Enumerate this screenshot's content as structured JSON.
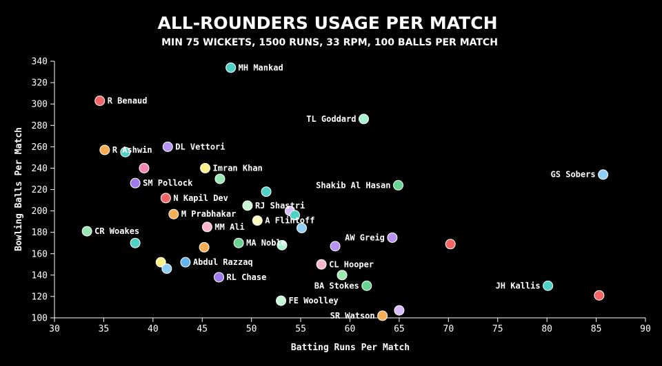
{
  "chart_data": {
    "type": "scatter",
    "title": "ALL-ROUNDERS USAGE PER MATCH",
    "subtitle": "MIN 75 WICKETS, 1500 RUNS, 33 RPM, 100 BALLS PER MATCH",
    "xlabel": "Batting Runs Per Match",
    "ylabel": "Bowling Balls Per Match",
    "xlim": [
      30,
      90
    ],
    "ylim": [
      100,
      340
    ],
    "xticks": [
      "30",
      "35",
      "40",
      "45",
      "50",
      "55",
      "60",
      "65",
      "70",
      "75",
      "80",
      "85",
      "90"
    ],
    "yticks": [
      "100",
      "120",
      "140",
      "160",
      "180",
      "200",
      "220",
      "240",
      "260",
      "280",
      "300",
      "320",
      "340"
    ],
    "grid": false,
    "points": [
      {
        "label": "MH Mankad",
        "x": 47.9,
        "y": 334,
        "color": "#4fd1c5",
        "anchor": "right"
      },
      {
        "label": "R Benaud",
        "x": 34.6,
        "y": 303,
        "color": "#f56565",
        "anchor": "right"
      },
      {
        "label": "TL Goddard",
        "x": 61.4,
        "y": 286,
        "color": "#a7f3d0",
        "anchor": "left"
      },
      {
        "label": "DL Vettori",
        "x": 41.5,
        "y": 260,
        "color": "#b794f4",
        "anchor": "right"
      },
      {
        "label": "R Ashwin",
        "x": 35.1,
        "y": 257,
        "color": "#f6ad55",
        "anchor": "right"
      },
      {
        "label": "",
        "x": 37.2,
        "y": 255,
        "color": "#4fd1c5",
        "anchor": "none"
      },
      {
        "label": "Imran Khan",
        "x": 45.3,
        "y": 240,
        "color": "#faf089",
        "anchor": "right"
      },
      {
        "label": "",
        "x": 39.1,
        "y": 240,
        "color": "#f687b3",
        "anchor": "none"
      },
      {
        "label": "GS Sobers",
        "x": 85.7,
        "y": 234,
        "color": "#90cdf4",
        "anchor": "left"
      },
      {
        "label": "",
        "x": 46.8,
        "y": 230,
        "color": "#9ae6b4",
        "anchor": "none"
      },
      {
        "label": "SM Pollock",
        "x": 38.2,
        "y": 226,
        "color": "#9f7aea",
        "anchor": "right"
      },
      {
        "label": "Shakib Al Hasan",
        "x": 64.9,
        "y": 224,
        "color": "#68d391",
        "anchor": "left"
      },
      {
        "label": "",
        "x": 51.5,
        "y": 218,
        "color": "#4fd1c5",
        "anchor": "none"
      },
      {
        "label": "N Kapil Dev",
        "x": 41.3,
        "y": 212,
        "color": "#f56565",
        "anchor": "right"
      },
      {
        "label": "RJ Shastri",
        "x": 49.6,
        "y": 205,
        "color": "#c6f6d5",
        "anchor": "right"
      },
      {
        "label": "",
        "x": 53.9,
        "y": 200,
        "color": "#d6bcfa",
        "anchor": "none"
      },
      {
        "label": "",
        "x": 54.4,
        "y": 196,
        "color": "#4fd1c5",
        "anchor": "none"
      },
      {
        "label": "M Prabhakar",
        "x": 42.1,
        "y": 197,
        "color": "#f6ad55",
        "anchor": "right"
      },
      {
        "label": "A Flintoff",
        "x": 50.6,
        "y": 191,
        "color": "#fefcbf",
        "anchor": "right"
      },
      {
        "label": "MM Ali",
        "x": 45.5,
        "y": 185,
        "color": "#fbb6ce",
        "anchor": "right"
      },
      {
        "label": "",
        "x": 55.1,
        "y": 184,
        "color": "#90cdf4",
        "anchor": "none"
      },
      {
        "label": "CR Woakes",
        "x": 33.3,
        "y": 181,
        "color": "#9ae6b4",
        "anchor": "right"
      },
      {
        "label": "AW Greig",
        "x": 64.3,
        "y": 175,
        "color": "#b794f4",
        "anchor": "left"
      },
      {
        "label": "",
        "x": 38.2,
        "y": 170,
        "color": "#4fd1c5",
        "anchor": "none"
      },
      {
        "label": "MA Noble",
        "x": 48.7,
        "y": 170,
        "color": "#68d391",
        "anchor": "right"
      },
      {
        "label": "",
        "x": 53.1,
        "y": 168,
        "color": "#a7f3d0",
        "anchor": "none"
      },
      {
        "label": "",
        "x": 70.2,
        "y": 169,
        "color": "#f56565",
        "anchor": "none"
      },
      {
        "label": "",
        "x": 58.5,
        "y": 167,
        "color": "#b794f4",
        "anchor": "none"
      },
      {
        "label": "",
        "x": 45.2,
        "y": 166,
        "color": "#f6ad55",
        "anchor": "none"
      },
      {
        "label": "Abdul Razzaq",
        "x": 43.3,
        "y": 152,
        "color": "#63b3ed",
        "anchor": "right"
      },
      {
        "label": "",
        "x": 40.8,
        "y": 152,
        "color": "#faf089",
        "anchor": "none"
      },
      {
        "label": "CL Hooper",
        "x": 57.1,
        "y": 150,
        "color": "#fbb6ce",
        "anchor": "right"
      },
      {
        "label": "",
        "x": 41.4,
        "y": 146,
        "color": "#90cdf4",
        "anchor": "none"
      },
      {
        "label": "",
        "x": 59.2,
        "y": 140,
        "color": "#9ae6b4",
        "anchor": "none"
      },
      {
        "label": "RL Chase",
        "x": 46.7,
        "y": 138,
        "color": "#9f7aea",
        "anchor": "right"
      },
      {
        "label": "BA Stokes",
        "x": 61.7,
        "y": 130,
        "color": "#68d391",
        "anchor": "left"
      },
      {
        "label": "JH Kallis",
        "x": 80.1,
        "y": 130,
        "color": "#4fd1c5",
        "anchor": "left"
      },
      {
        "label": "",
        "x": 85.3,
        "y": 121,
        "color": "#f56565",
        "anchor": "none"
      },
      {
        "label": "FE Woolley",
        "x": 53.0,
        "y": 116,
        "color": "#c6f6d5",
        "anchor": "right"
      },
      {
        "label": "",
        "x": 65.0,
        "y": 107,
        "color": "#d6bcfa",
        "anchor": "none"
      },
      {
        "label": "SR Watson",
        "x": 63.3,
        "y": 102,
        "color": "#f6ad55",
        "anchor": "left"
      }
    ]
  }
}
